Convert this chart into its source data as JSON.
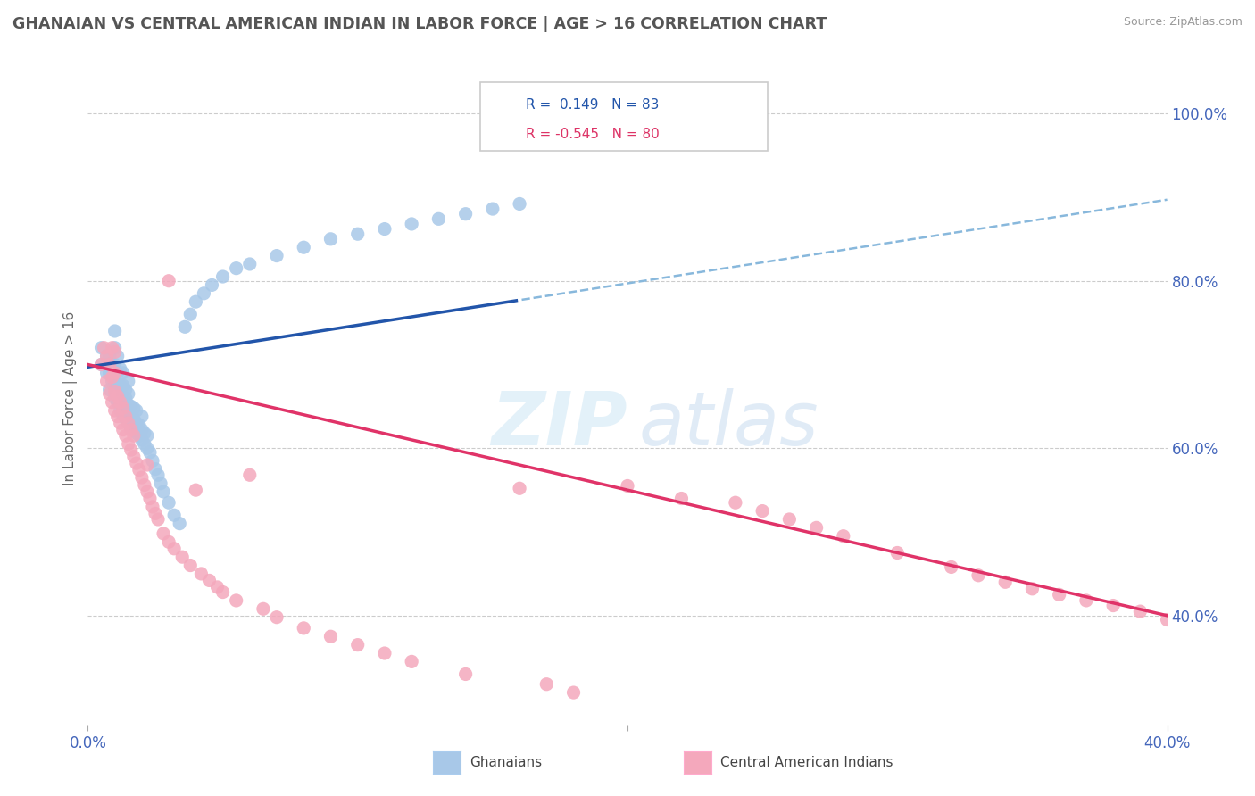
{
  "title": "GHANAIAN VS CENTRAL AMERICAN INDIAN IN LABOR FORCE | AGE > 16 CORRELATION CHART",
  "source_text": "Source: ZipAtlas.com",
  "ylabel": "In Labor Force | Age > 16",
  "xlim": [
    0.0,
    0.4
  ],
  "ylim": [
    0.27,
    1.05
  ],
  "y_tick_labels_right": [
    "40.0%",
    "60.0%",
    "80.0%",
    "100.0%"
  ],
  "y_tick_positions_right": [
    0.4,
    0.6,
    0.8,
    1.0
  ],
  "r_blue": 0.149,
  "n_blue": 83,
  "r_pink": -0.545,
  "n_pink": 80,
  "blue_color": "#A8C8E8",
  "pink_color": "#F4A8BC",
  "blue_line_color": "#2255AA",
  "pink_line_color": "#E03368",
  "dashed_line_color": "#88B8DC",
  "blue_scatter_x": [
    0.005,
    0.005,
    0.007,
    0.007,
    0.008,
    0.008,
    0.008,
    0.009,
    0.009,
    0.01,
    0.01,
    0.01,
    0.01,
    0.01,
    0.01,
    0.011,
    0.011,
    0.011,
    0.011,
    0.011,
    0.012,
    0.012,
    0.012,
    0.012,
    0.012,
    0.013,
    0.013,
    0.013,
    0.013,
    0.013,
    0.014,
    0.014,
    0.014,
    0.014,
    0.015,
    0.015,
    0.015,
    0.015,
    0.015,
    0.016,
    0.016,
    0.016,
    0.017,
    0.017,
    0.017,
    0.018,
    0.018,
    0.018,
    0.019,
    0.019,
    0.02,
    0.02,
    0.02,
    0.021,
    0.021,
    0.022,
    0.022,
    0.023,
    0.024,
    0.025,
    0.026,
    0.027,
    0.028,
    0.03,
    0.032,
    0.034,
    0.036,
    0.038,
    0.04,
    0.043,
    0.046,
    0.05,
    0.055,
    0.06,
    0.07,
    0.08,
    0.09,
    0.1,
    0.11,
    0.12,
    0.13,
    0.14,
    0.15,
    0.16
  ],
  "blue_scatter_y": [
    0.7,
    0.72,
    0.69,
    0.71,
    0.67,
    0.69,
    0.71,
    0.68,
    0.7,
    0.66,
    0.67,
    0.68,
    0.7,
    0.72,
    0.74,
    0.655,
    0.665,
    0.675,
    0.69,
    0.71,
    0.645,
    0.655,
    0.665,
    0.675,
    0.695,
    0.64,
    0.65,
    0.66,
    0.675,
    0.69,
    0.635,
    0.645,
    0.66,
    0.67,
    0.63,
    0.64,
    0.652,
    0.665,
    0.68,
    0.625,
    0.638,
    0.65,
    0.622,
    0.635,
    0.648,
    0.618,
    0.63,
    0.645,
    0.615,
    0.628,
    0.61,
    0.622,
    0.638,
    0.605,
    0.618,
    0.6,
    0.615,
    0.595,
    0.585,
    0.575,
    0.568,
    0.558,
    0.548,
    0.535,
    0.52,
    0.51,
    0.745,
    0.76,
    0.775,
    0.785,
    0.795,
    0.805,
    0.815,
    0.82,
    0.83,
    0.84,
    0.85,
    0.856,
    0.862,
    0.868,
    0.874,
    0.88,
    0.886,
    0.892
  ],
  "pink_scatter_x": [
    0.005,
    0.006,
    0.007,
    0.007,
    0.008,
    0.008,
    0.009,
    0.009,
    0.009,
    0.01,
    0.01,
    0.01,
    0.01,
    0.011,
    0.011,
    0.012,
    0.012,
    0.013,
    0.013,
    0.014,
    0.014,
    0.015,
    0.015,
    0.016,
    0.016,
    0.017,
    0.017,
    0.018,
    0.019,
    0.02,
    0.021,
    0.022,
    0.022,
    0.023,
    0.024,
    0.025,
    0.026,
    0.028,
    0.03,
    0.03,
    0.032,
    0.035,
    0.038,
    0.04,
    0.042,
    0.045,
    0.048,
    0.05,
    0.055,
    0.06,
    0.065,
    0.07,
    0.08,
    0.09,
    0.1,
    0.11,
    0.12,
    0.14,
    0.16,
    0.17,
    0.18,
    0.2,
    0.22,
    0.24,
    0.25,
    0.26,
    0.27,
    0.28,
    0.3,
    0.32,
    0.33,
    0.34,
    0.35,
    0.36,
    0.37,
    0.38,
    0.39,
    0.4
  ],
  "pink_scatter_y": [
    0.7,
    0.72,
    0.68,
    0.71,
    0.665,
    0.7,
    0.655,
    0.685,
    0.72,
    0.645,
    0.668,
    0.69,
    0.715,
    0.638,
    0.662,
    0.63,
    0.655,
    0.622,
    0.648,
    0.615,
    0.638,
    0.605,
    0.63,
    0.598,
    0.622,
    0.59,
    0.615,
    0.582,
    0.574,
    0.565,
    0.556,
    0.548,
    0.58,
    0.54,
    0.53,
    0.522,
    0.515,
    0.498,
    0.488,
    0.8,
    0.48,
    0.47,
    0.46,
    0.55,
    0.45,
    0.442,
    0.434,
    0.428,
    0.418,
    0.568,
    0.408,
    0.398,
    0.385,
    0.375,
    0.365,
    0.355,
    0.345,
    0.33,
    0.552,
    0.318,
    0.308,
    0.555,
    0.54,
    0.535,
    0.525,
    0.515,
    0.505,
    0.495,
    0.475,
    0.458,
    0.448,
    0.44,
    0.432,
    0.425,
    0.418,
    0.412,
    0.405,
    0.395
  ]
}
